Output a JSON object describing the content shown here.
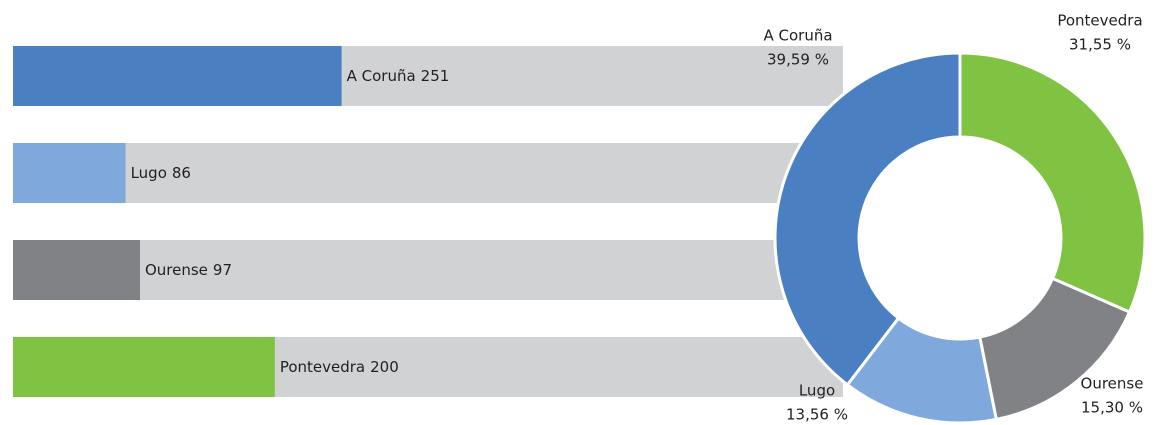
{
  "chart_data": [
    {
      "type": "hbar",
      "categories": [
        "A Coruña",
        "Lugo",
        "Ourense",
        "Pontevedra"
      ],
      "values": [
        251,
        86,
        97,
        200
      ],
      "colors": [
        "#4a7fc1",
        "#7fa9dc",
        "#808285",
        "#80c241"
      ],
      "track_color": "#d1d2d4",
      "xlim": [
        0,
        634
      ]
    },
    {
      "type": "donut",
      "categories": [
        "A Coruña",
        "Lugo",
        "Ourense",
        "Pontevedra"
      ],
      "values": [
        39.59,
        13.56,
        15.3,
        31.55
      ],
      "value_labels": [
        "39,59 %",
        "13,56 %",
        "15,30 %",
        "31,55 %"
      ],
      "colors": [
        "#4a7fc1",
        "#7fa9dc",
        "#808285",
        "#80c241"
      ]
    }
  ]
}
